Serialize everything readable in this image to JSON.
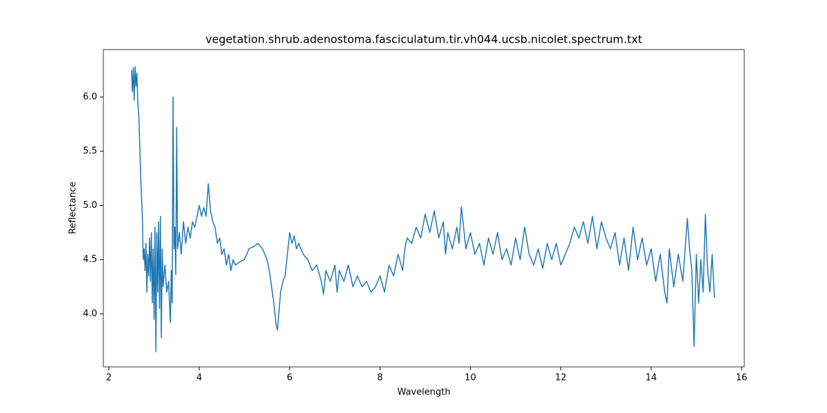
{
  "chart_data": {
    "type": "line",
    "title": "vegetation.shrub.adenostoma.fasciculatum.tir.vh044.ucsb.nicolet.spectrum.txt",
    "xlabel": "Wavelength",
    "ylabel": "Reflectance",
    "xlim": [
      1.878,
      16.061
    ],
    "ylim": [
      3.511,
      6.438
    ],
    "xticks": [
      2,
      4,
      6,
      8,
      10,
      12,
      14,
      16
    ],
    "yticks": [
      {
        "value": 4,
        "label": "4.0"
      },
      4.5,
      {
        "value": 5,
        "label": "5.0"
      },
      5.5,
      {
        "value": 6,
        "label": "6.0"
      }
    ],
    "grid": false,
    "series": [
      {
        "color": "#1f77b4",
        "x": [
          2.5,
          2.52,
          2.54,
          2.56,
          2.58,
          2.6,
          2.62,
          2.64,
          2.66,
          2.68,
          2.7,
          2.72,
          2.74,
          2.76,
          2.78,
          2.8,
          2.82,
          2.84,
          2.86,
          2.88,
          2.9,
          2.92,
          2.94,
          2.96,
          2.98,
          3.0,
          3.02,
          3.04,
          3.06,
          3.08,
          3.1,
          3.12,
          3.14,
          3.16,
          3.18,
          3.2,
          3.24,
          3.28,
          3.32,
          3.36,
          3.38,
          3.4,
          3.42,
          3.44,
          3.46,
          3.48,
          3.5,
          3.52,
          3.56,
          3.6,
          3.65,
          3.7,
          3.75,
          3.8,
          3.85,
          3.9,
          3.95,
          4.0,
          4.05,
          4.1,
          4.15,
          4.2,
          4.25,
          4.3,
          4.35,
          4.4,
          4.45,
          4.5,
          4.55,
          4.6,
          4.65,
          4.7,
          4.75,
          4.8,
          4.9,
          5.0,
          5.1,
          5.2,
          5.3,
          5.4,
          5.5,
          5.55,
          5.6,
          5.65,
          5.7,
          5.73,
          5.76,
          5.8,
          5.85,
          5.9,
          5.95,
          6.0,
          6.05,
          6.1,
          6.15,
          6.2,
          6.3,
          6.4,
          6.5,
          6.6,
          6.7,
          6.75,
          6.8,
          6.9,
          7.0,
          7.05,
          7.1,
          7.2,
          7.3,
          7.4,
          7.5,
          7.6,
          7.7,
          7.8,
          7.9,
          8.0,
          8.1,
          8.2,
          8.3,
          8.4,
          8.5,
          8.55,
          8.6,
          8.7,
          8.8,
          8.9,
          9.0,
          9.1,
          9.2,
          9.3,
          9.4,
          9.45,
          9.5,
          9.6,
          9.7,
          9.75,
          9.8,
          9.9,
          10.0,
          10.1,
          10.2,
          10.3,
          10.4,
          10.5,
          10.6,
          10.7,
          10.8,
          10.9,
          11.0,
          11.1,
          11.2,
          11.3,
          11.4,
          11.5,
          11.6,
          11.7,
          11.8,
          11.9,
          12.0,
          12.1,
          12.2,
          12.3,
          12.4,
          12.5,
          12.6,
          12.7,
          12.8,
          12.9,
          13.0,
          13.1,
          13.2,
          13.3,
          13.4,
          13.5,
          13.6,
          13.7,
          13.8,
          13.9,
          14.0,
          14.1,
          14.2,
          14.3,
          14.35,
          14.4,
          14.5,
          14.6,
          14.7,
          14.8,
          14.85,
          14.9,
          14.95,
          15.0,
          15.05,
          15.1,
          15.15,
          15.2,
          15.25,
          15.3,
          15.35,
          15.4
        ],
        "values": [
          6.25,
          6.05,
          6.27,
          5.97,
          6.28,
          6.1,
          6.22,
          5.95,
          5.85,
          5.6,
          5.3,
          5.1,
          4.9,
          4.5,
          4.6,
          4.4,
          4.65,
          4.2,
          4.55,
          4.35,
          4.7,
          4.3,
          4.75,
          4.1,
          4.6,
          3.95,
          4.8,
          3.65,
          4.75,
          4.2,
          4.85,
          4.05,
          4.9,
          3.78,
          4.6,
          4.25,
          4.45,
          4.2,
          4.3,
          3.92,
          4.4,
          4.1,
          6.0,
          4.6,
          4.8,
          4.36,
          5.72,
          4.6,
          4.75,
          4.55,
          4.85,
          4.65,
          4.8,
          4.7,
          4.85,
          4.8,
          4.9,
          5.0,
          4.9,
          4.98,
          4.9,
          5.2,
          4.95,
          4.85,
          4.8,
          4.65,
          4.7,
          4.55,
          4.6,
          4.45,
          4.55,
          4.4,
          4.5,
          4.45,
          4.48,
          4.5,
          4.6,
          4.62,
          4.65,
          4.6,
          4.5,
          4.4,
          4.25,
          4.1,
          3.9,
          3.85,
          4.0,
          4.2,
          4.3,
          4.35,
          4.55,
          4.75,
          4.65,
          4.72,
          4.6,
          4.65,
          4.55,
          4.5,
          4.4,
          4.45,
          4.3,
          4.18,
          4.4,
          4.3,
          4.45,
          4.2,
          4.4,
          4.3,
          4.45,
          4.25,
          4.35,
          4.25,
          4.3,
          4.2,
          4.25,
          4.35,
          4.2,
          4.45,
          4.35,
          4.55,
          4.4,
          4.6,
          4.7,
          4.65,
          4.8,
          4.7,
          4.92,
          4.75,
          4.95,
          4.7,
          4.85,
          4.55,
          4.75,
          4.6,
          4.8,
          4.65,
          4.99,
          4.6,
          4.75,
          4.55,
          4.65,
          4.45,
          4.7,
          4.55,
          4.75,
          4.5,
          4.6,
          4.45,
          4.7,
          4.5,
          4.8,
          4.55,
          4.45,
          4.6,
          4.42,
          4.65,
          4.5,
          4.65,
          4.45,
          4.55,
          4.65,
          4.8,
          4.7,
          4.85,
          4.65,
          4.9,
          4.6,
          4.85,
          4.7,
          4.6,
          4.75,
          4.45,
          4.7,
          4.4,
          4.8,
          4.5,
          4.7,
          4.45,
          4.6,
          4.3,
          4.55,
          4.2,
          4.1,
          4.6,
          4.25,
          4.55,
          4.3,
          4.88,
          4.6,
          4.4,
          3.7,
          4.55,
          4.1,
          4.5,
          4.2,
          4.92,
          4.4,
          4.2,
          4.55,
          4.15
        ]
      }
    ]
  }
}
